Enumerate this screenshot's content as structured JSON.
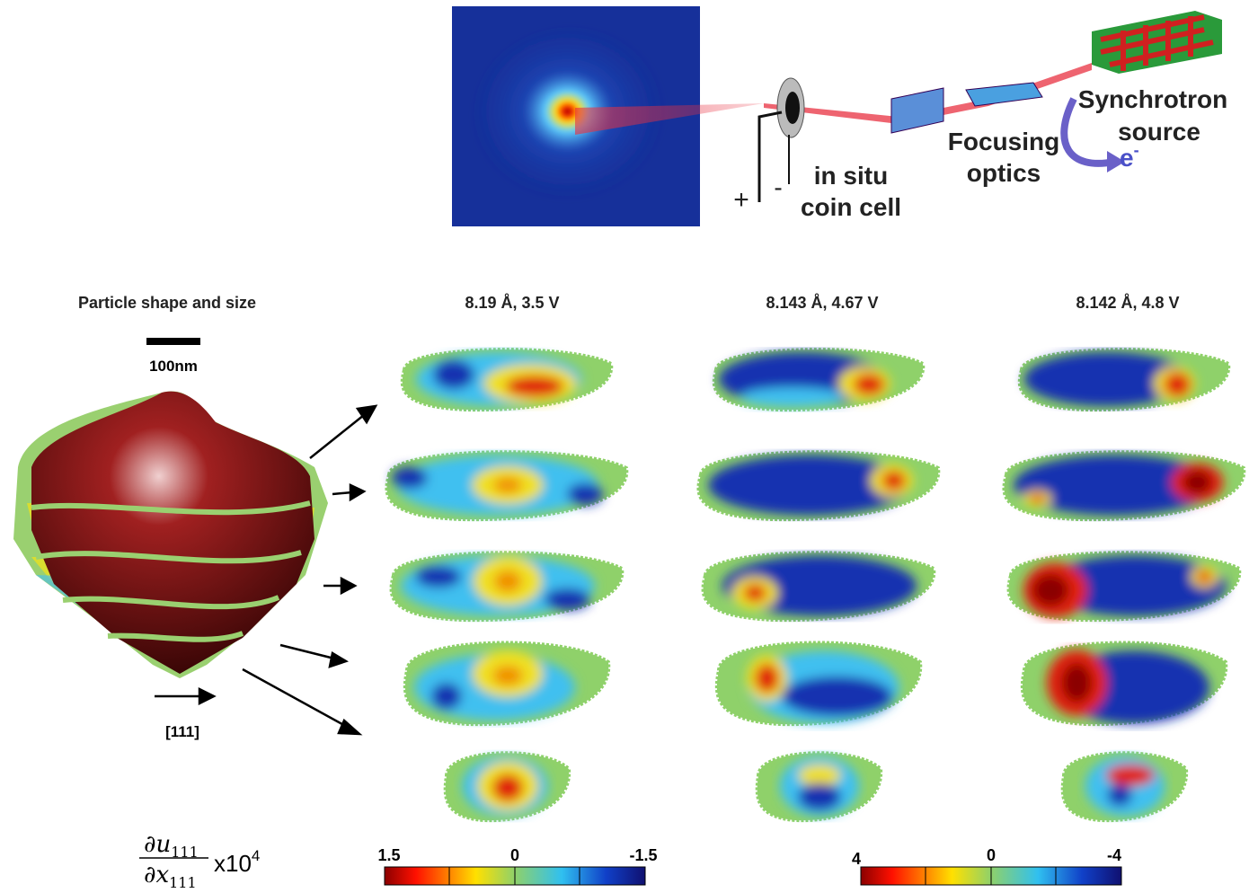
{
  "setup": {
    "cell_label_line1": "in situ",
    "cell_label_line2": "coin cell",
    "plus": "+",
    "minus": "-",
    "optics_line1": "Focusing",
    "optics_line2": "optics",
    "source_line1": "Synchrotron",
    "source_line2": "source",
    "electron": "e",
    "electron_charge": "-"
  },
  "particle": {
    "title": "Particle shape and size",
    "scale_bar": "100nm",
    "direction": "[111]"
  },
  "columns": [
    {
      "title": "8.19 Å, 3.5 V"
    },
    {
      "title": "8.143 Å, 4.67 V"
    },
    {
      "title": "8.142 Å, 4.8 V"
    }
  ],
  "strain_label": {
    "numerator": "∂u",
    "numerator_sub": "111",
    "denominator": "∂x",
    "denominator_sub": "111",
    "multiplier": "x10",
    "exponent": "4"
  },
  "colorbars": [
    {
      "ticks": [
        "1.5",
        "0",
        "-1.5"
      ]
    },
    {
      "ticks": [
        "4",
        "0",
        "-4"
      ]
    }
  ]
}
